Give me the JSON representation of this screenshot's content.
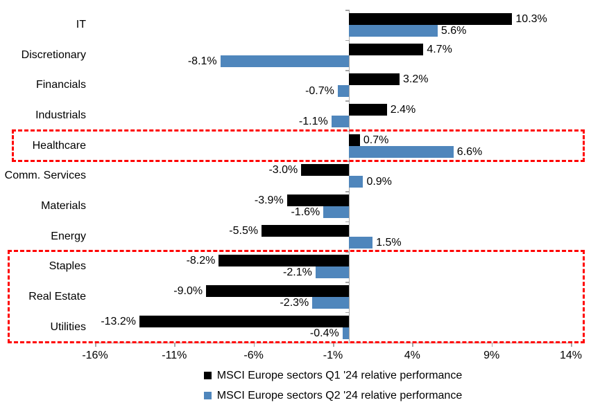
{
  "chart_data": {
    "type": "bar",
    "orientation": "horizontal",
    "title": "",
    "categories": [
      "IT",
      "Discretionary",
      "Financials",
      "Industrials",
      "Healthcare",
      "Comm. Services",
      "Materials",
      "Energy",
      "Staples",
      "Real Estate",
      "Utilities"
    ],
    "series": [
      {
        "name": "MSCI Europe sectors Q1 '24 relative performance",
        "color": "#000000",
        "values": [
          10.3,
          4.7,
          3.2,
          2.4,
          0.7,
          -3.0,
          -3.9,
          -5.5,
          -8.2,
          -9.0,
          -13.2
        ],
        "labels": [
          "10.3%",
          "4.7%",
          "3.2%",
          "2.4%",
          "0.7%",
          "-3.0%",
          "-3.9%",
          "-5.5%",
          "-8.2%",
          "-9.0%",
          "-13.2%"
        ]
      },
      {
        "name": "MSCI Europe sectors Q2 '24 relative performance",
        "color": "#4F86BC",
        "values": [
          5.6,
          -8.1,
          -0.7,
          -1.1,
          6.6,
          0.9,
          -1.6,
          1.5,
          -2.1,
          -2.3,
          -0.4
        ],
        "labels": [
          "5.6%",
          "-8.1%",
          "-0.7%",
          "-1.1%",
          "6.6%",
          "0.9%",
          "-1.6%",
          "1.5%",
          "-2.1%",
          "-2.3%",
          "-0.4%"
        ]
      }
    ],
    "xlim": [
      -16,
      14
    ],
    "x_ticks": {
      "values": [
        -16,
        -11,
        -6,
        -1,
        4,
        9,
        14
      ],
      "labels": [
        "-16%",
        "-11%",
        "-6%",
        "-1%",
        "4%",
        "9%",
        "14%"
      ]
    },
    "grid": false,
    "legend_position": "bottom",
    "highlight_boxes": [
      {
        "categories": [
          "Healthcare"
        ],
        "row_start": 4,
        "row_end": 4,
        "color": "#FF0000"
      },
      {
        "categories": [
          "Staples",
          "Real Estate",
          "Utilities"
        ],
        "row_start": 8,
        "row_end": 10,
        "color": "#FF0000"
      }
    ],
    "colors": {
      "axis": "#A6A6A6",
      "text": "#000000",
      "background": "#FFFFFF"
    }
  }
}
